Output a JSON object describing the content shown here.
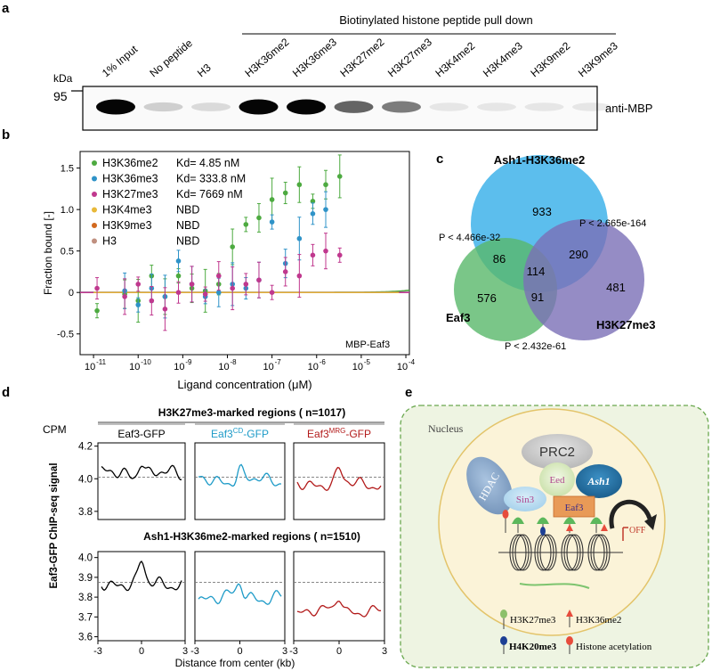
{
  "panel_labels": {
    "a": "a",
    "b": "b",
    "c": "c",
    "d": "d",
    "e": "e"
  },
  "panel_a": {
    "header": "Biotinylated histone peptide pull down",
    "kda_label": "kDa",
    "marker": "95",
    "antibody": "anti-MBP",
    "lanes": [
      "1% Input",
      "No peptide",
      "H3",
      "H3K36me2",
      "H3K36me3",
      "H3K27me2",
      "H3K27me3",
      "H3K4me2",
      "H3K4me3",
      "H3K9me2",
      "H3K9me3"
    ],
    "band_intensity": [
      1.0,
      0.15,
      0.1,
      1.0,
      1.0,
      0.6,
      0.5,
      0.05,
      0.05,
      0.05,
      0.05
    ]
  },
  "panel_b": {
    "ylabel": "Fraction bound [-]",
    "xlabel": "Ligand concentration (μM)",
    "inset_label": "MBP-Eaf3",
    "yticks": [
      "-0.5",
      "0",
      "0.5",
      "1.0",
      "1.5"
    ],
    "xtick_exponents": [
      "-11",
      "-10",
      "-9",
      "-8",
      "-7",
      "-6",
      "-5",
      "-4"
    ],
    "legend": [
      {
        "name": "H3K36me2",
        "kd": "Kd= 4.85   nM",
        "color": "#4daa40"
      },
      {
        "name": "H3K36me3",
        "kd": "Kd= 333.8 nM",
        "color": "#2f93c8"
      },
      {
        "name": "H3K27me3",
        "kd": "Kd= 7669 nM",
        "color": "#c0388e"
      },
      {
        "name": "H3K4me3",
        "kd": "NBD",
        "color": "#e8b93a"
      },
      {
        "name": "H3K9me3",
        "kd": "NBD",
        "color": "#d2691e"
      },
      {
        "name": "H3",
        "kd": "NBD",
        "color": "#c09080"
      }
    ]
  },
  "chart_data": [
    {
      "type": "scatter",
      "title": "",
      "xlabel": "Ligand concentration (μM)",
      "ylabel": "Fraction bound [-]",
      "xscale": "log",
      "xlim": [
        5e-12,
        0.00012
      ],
      "ylim": [
        -0.75,
        1.7
      ],
      "legend_position": "top-left",
      "series": [
        {
          "name": "H3K36me2",
          "fit_kd_uM": 0.00485,
          "fit_top": 1.1,
          "x": [
            1.2e-11,
            5e-11,
            1e-10,
            2e-10,
            4e-10,
            8e-10,
            1.6e-09,
            3.2e-09,
            6.4e-09,
            1.3e-08,
            2.6e-08,
            5.1e-08,
            1e-07,
            2e-07,
            4.1e-07,
            8.2e-07,
            1.6e-06,
            3.3e-06
          ],
          "y": [
            -0.22,
            -0.02,
            -0.1,
            0.2,
            -0.05,
            0.2,
            0.05,
            0.02,
            0.1,
            0.55,
            0.82,
            0.9,
            1.12,
            1.2,
            1.3,
            1.1,
            1.3,
            1.4
          ]
        },
        {
          "name": "H3K36me3",
          "fit_kd_uM": 0.3338,
          "fit_top": 1.1,
          "x": [
            5e-11,
            1e-10,
            2e-10,
            4e-10,
            8e-10,
            1.6e-09,
            3.2e-09,
            6.4e-09,
            1.3e-08,
            2.6e-08,
            5.1e-08,
            1e-07,
            2e-07,
            4.1e-07,
            8.2e-07,
            1.6e-06
          ],
          "y": [
            0.02,
            -0.15,
            0.05,
            -0.05,
            0.38,
            0.1,
            -0.05,
            0.0,
            0.1,
            0.05,
            0.15,
            0.85,
            0.35,
            0.65,
            0.95,
            1.0
          ]
        },
        {
          "name": "H3K27me3",
          "fit_kd_uM": 7.669,
          "fit_top": 1.1,
          "x": [
            1.2e-11,
            5e-11,
            1e-10,
            2e-10,
            4e-10,
            8e-10,
            1.6e-09,
            3.2e-09,
            6.4e-09,
            1.3e-08,
            2.6e-08,
            5.1e-08,
            1e-07,
            2e-07,
            4.1e-07,
            8.2e-07,
            1.6e-06,
            3.3e-06
          ],
          "y": [
            0.05,
            -0.05,
            0.1,
            -0.1,
            -0.2,
            0.0,
            0.1,
            -0.02,
            0.2,
            0.05,
            0.1,
            0.15,
            0.0,
            0.25,
            0.2,
            0.45,
            0.5,
            0.45
          ]
        }
      ]
    },
    {
      "type": "venn",
      "sets": [
        "Ash1-H3K36me2",
        "H3K27me3",
        "Eaf3"
      ],
      "regions": {
        "ash1_only": "933",
        "h3k27_only": "481",
        "eaf3_only": "576",
        "ash1_h3k27": "290",
        "ash1_eaf3": "86",
        "eaf3_h3k27": "91",
        "all_three": "114"
      },
      "pvalues": {
        "ash1_h3k27": "P < 2.665e-164",
        "ash1_eaf3": "P < 4.466e-32",
        "eaf3_h3k27": "P < 2.432e-61"
      }
    },
    {
      "type": "line",
      "title_top": "H3K27me3-marked  regions ( n=1017)",
      "title_bottom": "Ash1-H3K36me2-marked  regions ( n=1510)",
      "ylabel": "Eaf3-GFP ChIP-seq signal",
      "xlabel": "Distance from center (kb)",
      "cpm_label": "CPM",
      "columns": [
        {
          "prefix": "Eaf3",
          "sup": "",
          "suffix": "-GFP",
          "color": "#000000"
        },
        {
          "prefix": "Eaf3",
          "sup": "CD",
          "suffix": "-GFP",
          "color": "#1e9bc8"
        },
        {
          "prefix": "Eaf3",
          "sup": "MRG",
          "suffix": "-GFP",
          "color": "#b21a1a"
        }
      ],
      "top_yticks": [
        "4.2",
        "4.0",
        "3.8"
      ],
      "bottom_yticks": [
        "4.0",
        "3.9",
        "3.8",
        "3.7",
        "3.6"
      ],
      "xticks": [
        "-3",
        "0",
        "3"
      ],
      "top_ref": 4.01,
      "bottom_ref": 3.875
    }
  ],
  "panel_e": {
    "nucleus_label": "Nucleus",
    "prc2": "PRC2",
    "eed": "Eed",
    "ash1": "Ash1",
    "hdac": "HDAC",
    "sin3": "Sin3",
    "eaf3": "Eaf3",
    "off": "OFF",
    "legend": [
      {
        "label": "H3K27me3",
        "marker": "green"
      },
      {
        "label": "H3K36me2",
        "marker": "red-arrow"
      },
      {
        "label": "H4K20me3",
        "marker": "blue"
      },
      {
        "label": "Histone acetylation",
        "marker": "red"
      }
    ]
  }
}
